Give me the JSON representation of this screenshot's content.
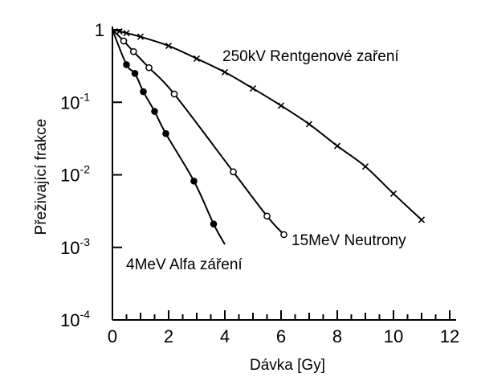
{
  "chart_data": {
    "type": "scatter",
    "title": "",
    "xlabel": "Dávka [Gy]",
    "ylabel": "Přeživající frakce",
    "xlim": [
      0,
      12
    ],
    "ylim": [
      0.0001,
      1
    ],
    "yscale": "log",
    "grid": false,
    "x_ticks": [
      0,
      2,
      4,
      6,
      8,
      10,
      12
    ],
    "x_tick_labels": [
      "0",
      "2",
      "4",
      "6",
      "8",
      "10",
      "12"
    ],
    "y_ticks": [
      {
        "value": 1,
        "label": "1",
        "base": "",
        "exp": ""
      },
      {
        "value": 0.1,
        "label": "10^-1",
        "base": "10",
        "exp": "-1"
      },
      {
        "value": 0.01,
        "label": "10^-2",
        "base": "10",
        "exp": "-2"
      },
      {
        "value": 0.001,
        "label": "10^-3",
        "base": "10",
        "exp": "-3"
      },
      {
        "value": 0.0001,
        "label": "10^-4",
        "base": "10",
        "exp": "-4"
      }
    ],
    "series": [
      {
        "name": "250kV Rentgenové zaření",
        "marker": "x",
        "x": [
          0,
          0.25,
          0.5,
          1.0,
          2.0,
          3.0,
          4.0,
          5.0,
          6.0,
          7.0,
          8.0,
          9.0,
          10.0,
          11.0
        ],
        "y": [
          1.0,
          0.95,
          0.9,
          0.8,
          0.6,
          0.4,
          0.26,
          0.155,
          0.09,
          0.05,
          0.025,
          0.013,
          0.0055,
          0.0024
        ]
      },
      {
        "name": "15MeV Neutrony",
        "marker": "open-circle",
        "x": [
          0,
          0.4,
          0.75,
          1.3,
          2.2,
          4.3,
          5.5,
          6.1
        ],
        "y": [
          1.0,
          0.7,
          0.5,
          0.3,
          0.13,
          0.011,
          0.0027,
          0.0015
        ]
      },
      {
        "name": "4MeV Alfa záření",
        "marker": "filled-circle",
        "x": [
          0,
          0.5,
          0.8,
          1.1,
          1.5,
          1.9,
          2.9,
          3.6
        ],
        "y": [
          1.0,
          0.33,
          0.25,
          0.14,
          0.075,
          0.037,
          0.0082,
          0.0021
        ]
      }
    ],
    "curve_extensions": {
      "250kV Rentgenové zaření": [],
      "15MeV Neutrony": [],
      "4MeV Alfa záření": [
        {
          "x": 4.0,
          "y": 0.0011
        }
      ]
    }
  }
}
